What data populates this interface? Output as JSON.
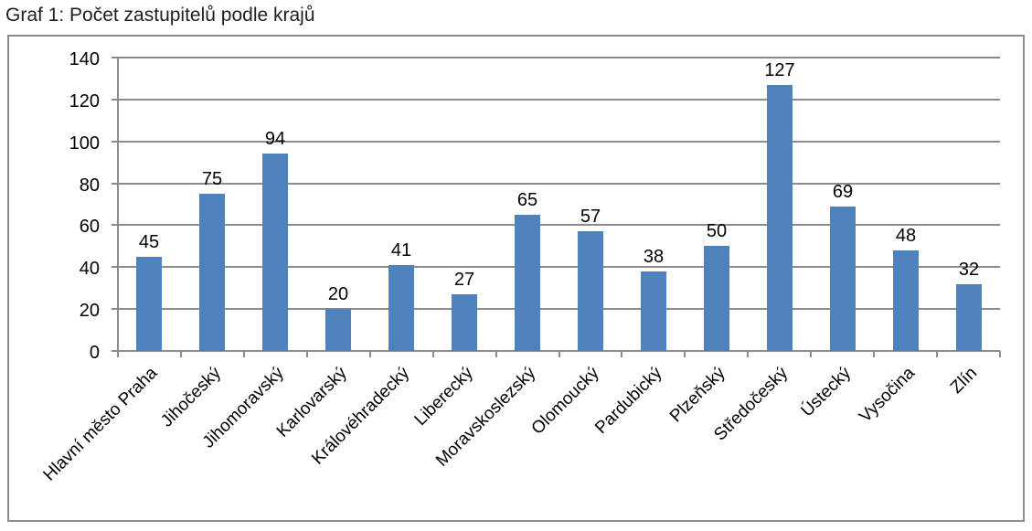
{
  "page": {
    "title": "Graf 1: Počet zastupitelů podle krajů"
  },
  "chart_data": {
    "type": "bar",
    "title": "Graf 1: Počet zastupitelů podle krajů",
    "categories": [
      "Hlavní město Praha",
      "Jihočeský",
      "Jihomoravský",
      "Karlovarský",
      "Královéhradecký",
      "Liberecký",
      "Moravskoslezský",
      "Olomoucký",
      "Pardubický",
      "Plzeňský",
      "Středočeský",
      "Ústecký",
      "Vysočina",
      "Zlín"
    ],
    "values": [
      45,
      75,
      94,
      20,
      41,
      27,
      65,
      57,
      38,
      50,
      127,
      69,
      48,
      32
    ],
    "data_labels": [
      "45",
      "75",
      "94",
      "20",
      "41",
      "27",
      "65",
      "57",
      "38",
      "50",
      "127",
      "69",
      "48",
      "32"
    ],
    "xlabel": "",
    "ylabel": "",
    "ylim": [
      0,
      140
    ],
    "yticks": [
      0,
      20,
      40,
      60,
      80,
      100,
      120,
      140
    ],
    "grid": true,
    "legend_position": "none",
    "bar_color": "#4f81bd",
    "gridline_color": "#8c8c8c",
    "axis_color": "#8c8c8c",
    "frame_border_color": "#8c8c8c",
    "text_color": "#000000",
    "x_label_rotation_deg": 45
  }
}
